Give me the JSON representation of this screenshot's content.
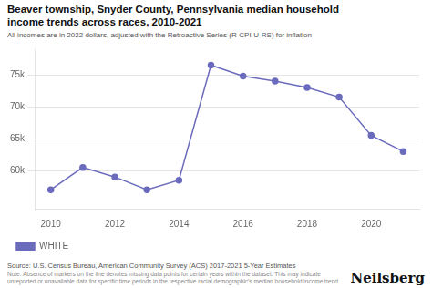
{
  "chart_data": {
    "type": "line",
    "title": "Beaver township, Snyder County, Pennsylvania median household\nincome trends across races, 2010-2021",
    "subtitle": "All incomes are in 2022 dollars, adjusted with the Retroactive Series (R-CPI-U-RS) for inflation",
    "source": "Source: U.S. Census Bureau, American Community Survey (ACS) 2017-2021 5-Year Estimates",
    "note": "Note: Absence of markers on the line denotes missing data points for certain years within the dataset. This may indicate unreported or unavailable data for specific time periods in the respective racial demographic's median household income trend.",
    "branding": "Neilsberg",
    "x": [
      2010,
      2011,
      2012,
      2013,
      2014,
      2015,
      2016,
      2017,
      2018,
      2019,
      2020,
      2021
    ],
    "series": [
      {
        "name": "WHITE",
        "color": "#6b6bbd",
        "marker": "circle",
        "values": [
          57000,
          60500,
          59000,
          57000,
          58500,
          76500,
          74800,
          74000,
          73000,
          71500,
          65500,
          63000
        ]
      }
    ],
    "xlim": [
      2009.5,
      2021.5
    ],
    "xticks": [
      2010,
      2012,
      2014,
      2016,
      2018,
      2020
    ],
    "ylim": [
      54000,
      79000
    ],
    "yticks": [
      {
        "value": 60000,
        "label": "60k"
      },
      {
        "value": 65000,
        "label": "65k"
      },
      {
        "value": 70000,
        "label": "70k"
      },
      {
        "value": 75000,
        "label": "75k"
      }
    ],
    "grid": "y",
    "legend": "bottom left"
  }
}
